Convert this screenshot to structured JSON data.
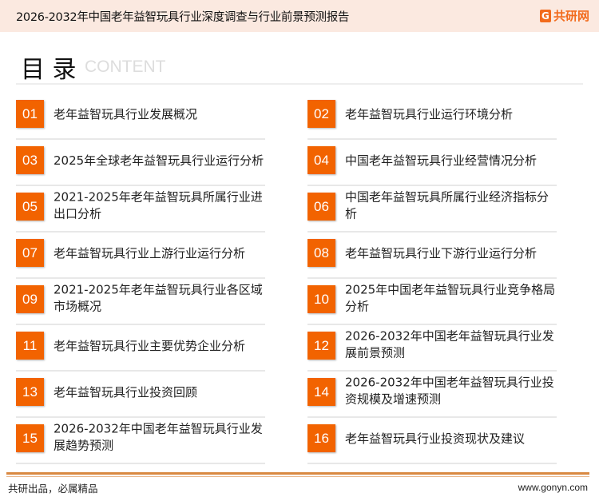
{
  "header": {
    "title": "2026-2032年中国老年益智玩具行业深度调查与行业前景预测报告",
    "logo_text": "共研网",
    "logo_mark": "G"
  },
  "toc": {
    "title": "目 录",
    "subtitle": "CONTENT"
  },
  "items": [
    {
      "num": "01",
      "label": "老年益智玩具行业发展概况"
    },
    {
      "num": "02",
      "label": "老年益智玩具行业运行环境分析"
    },
    {
      "num": "03",
      "label": "2025年全球老年益智玩具行业运行分析"
    },
    {
      "num": "04",
      "label": "中国老年益智玩具行业经营情况分析"
    },
    {
      "num": "05",
      "label": "2021-2025年老年益智玩具所属行业进出口分析"
    },
    {
      "num": "06",
      "label": "中国老年益智玩具所属行业经济指标分析"
    },
    {
      "num": "07",
      "label": "老年益智玩具行业上游行业运行分析"
    },
    {
      "num": "08",
      "label": "老年益智玩具行业下游行业运行分析"
    },
    {
      "num": "09",
      "label": "2021-2025年老年益智玩具行业各区域市场概况"
    },
    {
      "num": "10",
      "label": "2025年中国老年益智玩具行业竞争格局分析"
    },
    {
      "num": "11",
      "label": "老年益智玩具行业主要优势企业分析"
    },
    {
      "num": "12",
      "label": "2026-2032年中国老年益智玩具行业发展前景预测"
    },
    {
      "num": "13",
      "label": "老年益智玩具行业投资回顾"
    },
    {
      "num": "14",
      "label": "2026-2032年中国老年益智玩具行业投资规模及增速预测"
    },
    {
      "num": "15",
      "label": "2026-2032年中国老年益智玩具行业发展趋势预测"
    },
    {
      "num": "16",
      "label": "老年益智玩具行业投资现状及建议"
    }
  ],
  "footer": {
    "slogan": "共研出品，必属精品",
    "url": "www.gonyn.com"
  },
  "colors": {
    "accent": "#f26300",
    "header_bg": "#fbe9e0",
    "footer_rule": "#d98841"
  }
}
